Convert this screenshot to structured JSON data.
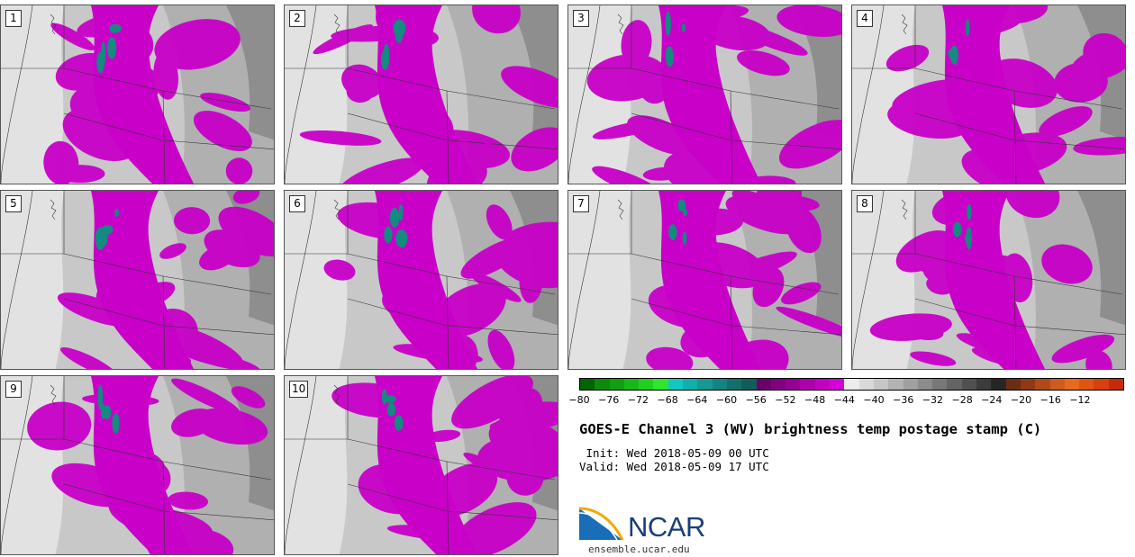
{
  "panels": [
    {
      "label": "1"
    },
    {
      "label": "2"
    },
    {
      "label": "3"
    },
    {
      "label": "4"
    },
    {
      "label": "5"
    },
    {
      "label": "6"
    },
    {
      "label": "7"
    },
    {
      "label": "8"
    },
    {
      "label": "9"
    },
    {
      "label": "10"
    }
  ],
  "colorbar": {
    "colors": [
      "#006400",
      "#0b8a0b",
      "#10a010",
      "#18b818",
      "#20d020",
      "#2ee62e",
      "#10c8c0",
      "#12b0aa",
      "#139a95",
      "#138580",
      "#12706c",
      "#105e5a",
      "#6a006a",
      "#800080",
      "#960096",
      "#ac00ac",
      "#c200c2",
      "#d800d8",
      "#ececec",
      "#d9d9d9",
      "#c6c6c6",
      "#b3b3b3",
      "#a0a0a0",
      "#8c8c8c",
      "#787878",
      "#646464",
      "#505050",
      "#3c3c3c",
      "#262626",
      "#6b2e12",
      "#8f3a14",
      "#b04a18",
      "#cf5c1c",
      "#e86a1c",
      "#e25412",
      "#d8400c",
      "#c62a08"
    ],
    "ticks": [
      "−80",
      "−76",
      "−72",
      "−68",
      "−64",
      "−60",
      "−56",
      "−52",
      "−48",
      "−44",
      "−40",
      "−36",
      "−32",
      "−28",
      "−24",
      "−20",
      "−16",
      "−12"
    ]
  },
  "title": "GOES-E Channel 3 (WV) brightness temp postage stamp (C)",
  "init": " Init: Wed 2018-05-09 00 UTC",
  "valid": "Valid: Wed 2018-05-09 17 UTC",
  "logo": {
    "name": "NCAR",
    "url": "ensemble.ucar.edu"
  }
}
